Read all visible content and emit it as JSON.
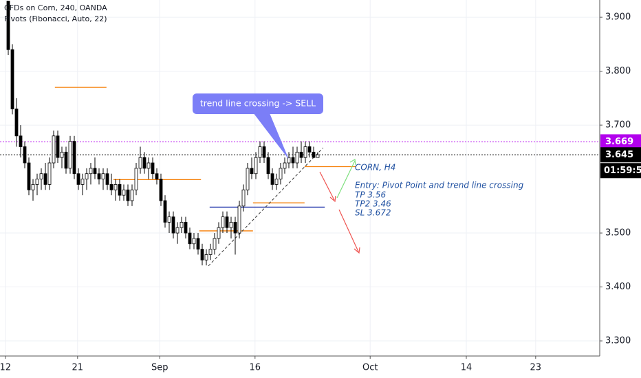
{
  "chart_data": {
    "type": "candlestick",
    "title": "CFDs on Corn, 240, OANDA",
    "subtitle": "Pivots (Fibonacci, Auto, 22)",
    "ylim": [
      3.272,
      3.932
    ],
    "yticks": [
      {
        "value": 3.3,
        "label": "3.300"
      },
      {
        "value": 3.4,
        "label": "3.400"
      },
      {
        "value": 3.5,
        "label": "3.500"
      },
      {
        "value": 3.7,
        "label": "3.700"
      },
      {
        "value": 3.8,
        "label": "3.800"
      },
      {
        "value": 3.9,
        "label": "3.900"
      }
    ],
    "xlim": [
      -2,
      143.33
    ],
    "xticks": [
      {
        "value": -0.7,
        "label": "12"
      },
      {
        "value": 16.8,
        "label": "21"
      },
      {
        "value": 36.7,
        "label": "Sep"
      },
      {
        "value": 59.8,
        "label": "16"
      },
      {
        "value": 87.7,
        "label": "Oct"
      },
      {
        "value": 111,
        "label": "14"
      },
      {
        "value": 127.8,
        "label": "23"
      }
    ],
    "grid": true,
    "up_color": "#ffffff",
    "down_color": "#000000",
    "ohlc": [
      [
        3.93,
        3.93,
        3.83,
        3.84
      ],
      [
        3.84,
        3.85,
        3.72,
        3.73
      ],
      [
        3.73,
        3.75,
        3.66,
        3.68
      ],
      [
        3.68,
        3.7,
        3.64,
        3.66
      ],
      [
        3.66,
        3.67,
        3.62,
        3.63
      ],
      [
        3.63,
        3.64,
        3.57,
        3.58
      ],
      [
        3.58,
        3.6,
        3.56,
        3.59
      ],
      [
        3.59,
        3.61,
        3.57,
        3.6
      ],
      [
        3.6,
        3.62,
        3.58,
        3.61
      ],
      [
        3.61,
        3.63,
        3.58,
        3.59
      ],
      [
        3.59,
        3.64,
        3.58,
        3.63
      ],
      [
        3.63,
        3.69,
        3.62,
        3.68
      ],
      [
        3.68,
        3.69,
        3.63,
        3.64
      ],
      [
        3.64,
        3.66,
        3.62,
        3.65
      ],
      [
        3.65,
        3.66,
        3.61,
        3.62
      ],
      [
        3.62,
        3.68,
        3.61,
        3.67
      ],
      [
        3.67,
        3.68,
        3.6,
        3.61
      ],
      [
        3.61,
        3.62,
        3.58,
        3.59
      ],
      [
        3.59,
        3.61,
        3.57,
        3.6
      ],
      [
        3.6,
        3.62,
        3.58,
        3.61
      ],
      [
        3.61,
        3.63,
        3.59,
        3.62
      ],
      [
        3.62,
        3.64,
        3.6,
        3.61
      ],
      [
        3.61,
        3.62,
        3.59,
        3.6
      ],
      [
        3.6,
        3.62,
        3.58,
        3.61
      ],
      [
        3.61,
        3.62,
        3.58,
        3.59
      ],
      [
        3.59,
        3.61,
        3.57,
        3.58
      ],
      [
        3.58,
        3.6,
        3.56,
        3.59
      ],
      [
        3.59,
        3.6,
        3.56,
        3.57
      ],
      [
        3.57,
        3.59,
        3.56,
        3.58
      ],
      [
        3.58,
        3.59,
        3.55,
        3.56
      ],
      [
        3.56,
        3.59,
        3.55,
        3.58
      ],
      [
        3.58,
        3.63,
        3.57,
        3.62
      ],
      [
        3.62,
        3.66,
        3.61,
        3.64
      ],
      [
        3.64,
        3.65,
        3.61,
        3.62
      ],
      [
        3.62,
        3.64,
        3.6,
        3.63
      ],
      [
        3.63,
        3.64,
        3.6,
        3.61
      ],
      [
        3.61,
        3.62,
        3.59,
        3.6
      ],
      [
        3.6,
        3.61,
        3.55,
        3.56
      ],
      [
        3.56,
        3.57,
        3.51,
        3.52
      ],
      [
        3.52,
        3.54,
        3.5,
        3.53
      ],
      [
        3.53,
        3.54,
        3.49,
        3.5
      ],
      [
        3.5,
        3.52,
        3.48,
        3.51
      ],
      [
        3.51,
        3.53,
        3.5,
        3.52
      ],
      [
        3.52,
        3.53,
        3.49,
        3.5
      ],
      [
        3.5,
        3.51,
        3.47,
        3.48
      ],
      [
        3.48,
        3.5,
        3.47,
        3.49
      ],
      [
        3.49,
        3.5,
        3.46,
        3.47
      ],
      [
        3.47,
        3.48,
        3.44,
        3.45
      ],
      [
        3.45,
        3.47,
        3.44,
        3.46
      ],
      [
        3.46,
        3.48,
        3.45,
        3.47
      ],
      [
        3.47,
        3.5,
        3.46,
        3.49
      ],
      [
        3.49,
        3.52,
        3.48,
        3.51
      ],
      [
        3.51,
        3.54,
        3.5,
        3.53
      ],
      [
        3.53,
        3.54,
        3.5,
        3.51
      ],
      [
        3.51,
        3.53,
        3.49,
        3.52
      ],
      [
        3.52,
        3.53,
        3.46,
        3.5
      ],
      [
        3.5,
        3.56,
        3.49,
        3.55
      ],
      [
        3.55,
        3.59,
        3.54,
        3.58
      ],
      [
        3.58,
        3.63,
        3.57,
        3.62
      ],
      [
        3.62,
        3.64,
        3.6,
        3.61
      ],
      [
        3.61,
        3.65,
        3.6,
        3.64
      ],
      [
        3.64,
        3.67,
        3.63,
        3.66
      ],
      [
        3.66,
        3.67,
        3.63,
        3.64
      ],
      [
        3.64,
        3.65,
        3.6,
        3.61
      ],
      [
        3.61,
        3.62,
        3.58,
        3.59
      ],
      [
        3.59,
        3.61,
        3.58,
        3.6
      ],
      [
        3.6,
        3.63,
        3.59,
        3.62
      ],
      [
        3.62,
        3.64,
        3.61,
        3.63
      ],
      [
        3.63,
        3.65,
        3.62,
        3.64
      ],
      [
        3.64,
        3.66,
        3.62,
        3.63
      ],
      [
        3.63,
        3.66,
        3.62,
        3.65
      ],
      [
        3.65,
        3.67,
        3.63,
        3.64
      ],
      [
        3.64,
        3.67,
        3.63,
        3.66
      ],
      [
        3.66,
        3.67,
        3.64,
        3.65
      ],
      [
        3.65,
        3.66,
        3.64,
        3.64
      ],
      [
        3.64,
        3.65,
        3.64,
        3.645
      ]
    ],
    "pivot_levels": [
      {
        "x": [
          11.3,
          23.8
        ],
        "value": 3.77,
        "color": "#f57c00"
      },
      {
        "x": [
          25.5,
          46.7
        ],
        "value": 3.599,
        "color": "#f57c00"
      },
      {
        "x": [
          46.3,
          59.3
        ],
        "value": 3.504,
        "color": "#f57c00"
      },
      {
        "x": [
          59.3,
          71.8
        ],
        "value": 3.556,
        "color": "#f57c00"
      },
      {
        "x": [
          71.8,
          84.3
        ],
        "value": 3.623,
        "color": "#f57c00"
      },
      {
        "x": [
          48.8,
          76.7
        ],
        "value": 3.548,
        "color": "#1a2fa8"
      }
    ],
    "trend_line": {
      "x": [
        48.5,
        76.3
      ],
      "values": [
        3.439,
        3.658
      ]
    },
    "alert_line": {
      "value": 3.669,
      "label": "3.669",
      "color": "#b200ed"
    },
    "last_price": {
      "value": 3.645,
      "label": "3.645",
      "color": "#000000"
    },
    "countdown": "01:59:5",
    "callout": "trend line crossing -> SELL",
    "notes": [
      "CORN, H4",
      "Entry: Pivot Point and trend line crossing",
      "TP 3.56",
      "TP2 3.46",
      "SL 3.672"
    ]
  }
}
